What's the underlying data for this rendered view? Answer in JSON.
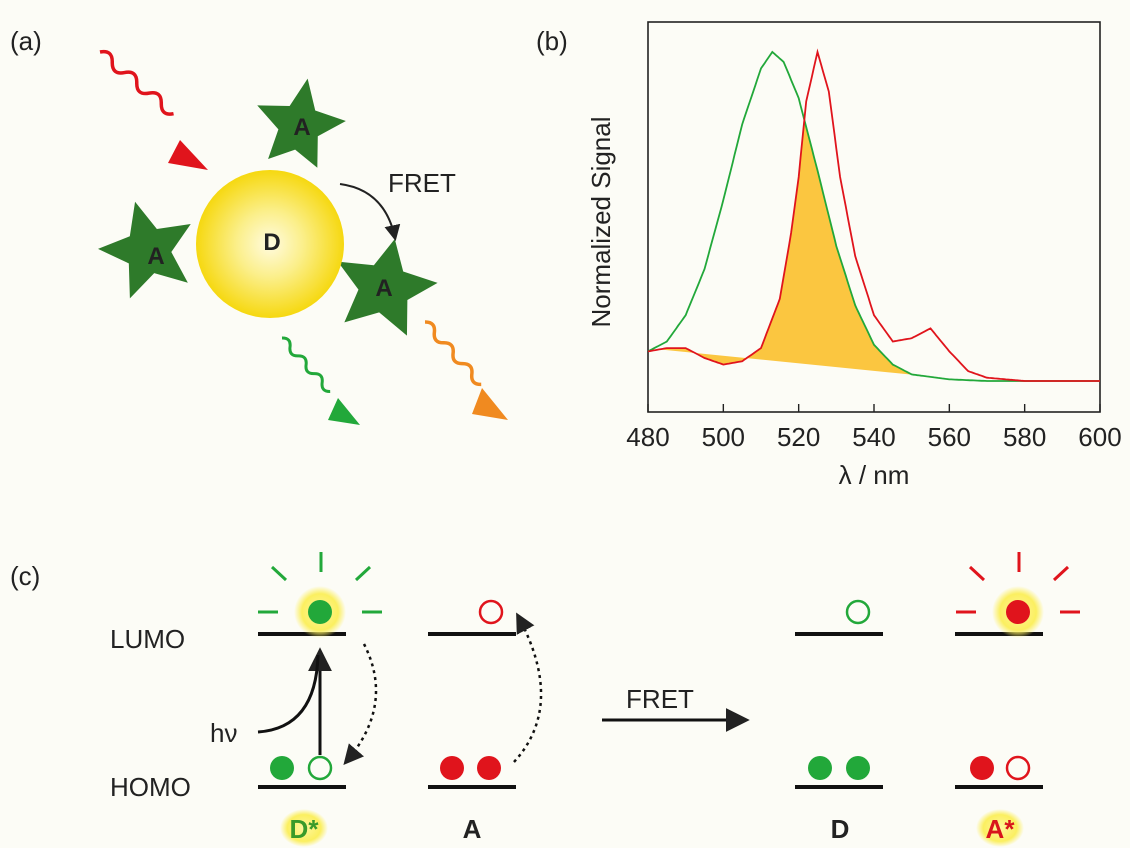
{
  "panels": {
    "a": {
      "label": "(a)",
      "donor": "D",
      "acceptor": "A",
      "transfer": "FRET"
    },
    "b": {
      "label": "(b)",
      "ylabel": "Normalized Signal",
      "xlabel": "λ / nm"
    },
    "c": {
      "label": "(c)",
      "lumo": "LUMO",
      "homo": "HOMO",
      "excitation": "hν",
      "arrow": "FRET",
      "states": [
        {
          "label": "D*",
          "color": "#3a9a2a"
        },
        {
          "label": "A",
          "color": "#222222"
        },
        {
          "label": "D",
          "color": "#222222"
        },
        {
          "label": "A*",
          "color": "#d8141c"
        }
      ]
    }
  },
  "colors": {
    "donor_green": "#22a83a",
    "acceptor_red": "#e0141c",
    "overlap_fill": "#fbc640",
    "star_green": "#2e7a2a",
    "sphere_yellow": "#f8dc20"
  },
  "chart_data": {
    "type": "line",
    "xlabel": "λ / nm",
    "ylabel": "Normalized Signal",
    "xlim": [
      480,
      600
    ],
    "ylim": [
      0,
      1
    ],
    "xticks": [
      "480",
      "500",
      "520",
      "540",
      "560",
      "580",
      "600"
    ],
    "shaded_overlap": true,
    "series": [
      {
        "color": "#22a83a",
        "x": [
          480,
          485,
          490,
          495,
          500,
          505,
          510,
          513,
          516,
          520,
          525,
          530,
          535,
          540,
          545,
          550,
          560,
          570,
          580,
          590,
          600
        ],
        "y": [
          0.09,
          0.12,
          0.2,
          0.34,
          0.55,
          0.78,
          0.95,
          1.0,
          0.97,
          0.86,
          0.64,
          0.41,
          0.23,
          0.11,
          0.05,
          0.02,
          0.005,
          0.0,
          0.0,
          0.0,
          0.0
        ]
      },
      {
        "color": "#e0141c",
        "x": [
          480,
          485,
          490,
          495,
          500,
          505,
          510,
          515,
          518,
          520,
          522,
          525,
          528,
          531,
          535,
          540,
          545,
          550,
          555,
          560,
          565,
          570,
          580,
          590,
          600
        ],
        "y": [
          0.09,
          0.1,
          0.1,
          0.07,
          0.05,
          0.06,
          0.1,
          0.25,
          0.45,
          0.62,
          0.85,
          1.0,
          0.88,
          0.62,
          0.38,
          0.2,
          0.12,
          0.13,
          0.16,
          0.09,
          0.03,
          0.01,
          0.0,
          0.0,
          0.0
        ]
      }
    ]
  }
}
